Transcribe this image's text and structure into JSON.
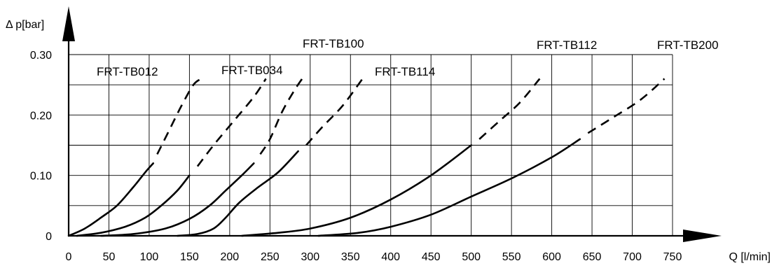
{
  "chart_data": {
    "type": "line",
    "ylabel": "Δ p[bar]",
    "xlabel": "Q [l/min]",
    "xlim": [
      0,
      750
    ],
    "ylim": [
      0,
      0.3
    ],
    "x_ticks": [
      0,
      50,
      100,
      150,
      200,
      250,
      300,
      350,
      400,
      450,
      500,
      550,
      600,
      650,
      700,
      750
    ],
    "x_tick_labels": [
      "0",
      "50",
      "100",
      "150",
      "200",
      "250",
      "300",
      "350",
      "400",
      "450",
      "500",
      "550",
      "600",
      "650",
      "700",
      "750"
    ],
    "y_ticks": [
      0,
      0.1,
      0.2,
      0.3
    ],
    "y_tick_labels": [
      "0",
      "0.10",
      "0.20",
      "0.30"
    ],
    "y_gridlines": [
      0.05,
      0.1,
      0.15,
      0.2,
      0.25,
      0.3
    ],
    "grid": true,
    "series": [
      {
        "name": "FRT-TB012",
        "solid": [
          [
            0,
            0
          ],
          [
            20,
            0.012
          ],
          [
            40,
            0.03
          ],
          [
            60,
            0.05
          ],
          [
            80,
            0.08
          ],
          [
            95,
            0.105
          ],
          [
            105,
            0.12
          ]
        ],
        "dashed": [
          [
            110,
            0.135
          ],
          [
            125,
            0.175
          ],
          [
            140,
            0.215
          ],
          [
            155,
            0.25
          ],
          [
            165,
            0.26
          ]
        ]
      },
      {
        "name": "FRT-TB034",
        "solid": [
          [
            10,
            0
          ],
          [
            40,
            0.005
          ],
          [
            70,
            0.015
          ],
          [
            95,
            0.03
          ],
          [
            115,
            0.05
          ],
          [
            135,
            0.075
          ],
          [
            150,
            0.1
          ]
        ],
        "dashed": [
          [
            160,
            0.115
          ],
          [
            180,
            0.15
          ],
          [
            205,
            0.19
          ],
          [
            230,
            0.23
          ],
          [
            245,
            0.26
          ]
        ]
      },
      {
        "name": "FRT-TB100",
        "solid": [
          [
            40,
            0
          ],
          [
            80,
            0.003
          ],
          [
            120,
            0.012
          ],
          [
            150,
            0.028
          ],
          [
            175,
            0.05
          ],
          [
            195,
            0.075
          ],
          [
            215,
            0.1
          ],
          [
            230,
            0.12
          ]
        ],
        "dashed": [
          [
            238,
            0.135
          ],
          [
            250,
            0.16
          ],
          [
            265,
            0.205
          ],
          [
            280,
            0.24
          ],
          [
            290,
            0.26
          ]
        ]
      },
      {
        "name": "FRT-TB114",
        "solid": [
          [
            135,
            0
          ],
          [
            160,
            0.003
          ],
          [
            180,
            0.012
          ],
          [
            195,
            0.03
          ],
          [
            212,
            0.055
          ],
          [
            235,
            0.08
          ],
          [
            260,
            0.105
          ],
          [
            285,
            0.14
          ]
        ],
        "dashed": [
          [
            295,
            0.15
          ],
          [
            315,
            0.18
          ],
          [
            340,
            0.215
          ],
          [
            365,
            0.26
          ]
        ]
      },
      {
        "name": "FRT-TB112",
        "solid": [
          [
            215,
            0
          ],
          [
            260,
            0.005
          ],
          [
            300,
            0.012
          ],
          [
            350,
            0.03
          ],
          [
            400,
            0.06
          ],
          [
            450,
            0.1
          ],
          [
            500,
            0.15
          ]
        ],
        "dashed": [
          [
            510,
            0.16
          ],
          [
            535,
            0.19
          ],
          [
            560,
            0.22
          ],
          [
            585,
            0.26
          ]
        ]
      },
      {
        "name": "FRT-TB200",
        "solid": [
          [
            310,
            0
          ],
          [
            360,
            0.005
          ],
          [
            400,
            0.015
          ],
          [
            450,
            0.035
          ],
          [
            500,
            0.065
          ],
          [
            550,
            0.095
          ],
          [
            600,
            0.13
          ],
          [
            635,
            0.16
          ]
        ],
        "dashed": [
          [
            645,
            0.17
          ],
          [
            675,
            0.195
          ],
          [
            710,
            0.225
          ],
          [
            740,
            0.26
          ]
        ]
      }
    ]
  }
}
